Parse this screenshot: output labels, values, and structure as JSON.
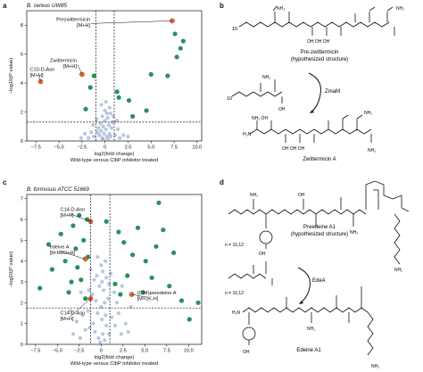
{
  "panel_letters": {
    "a": "a",
    "b": "b",
    "c": "c",
    "d": "d"
  },
  "plot_titles": {
    "a": "B. cereus UW85",
    "c": "B. formosus ATCC 51669"
  },
  "colors": {
    "background_point": "#7e97c8",
    "significant_point": "#1c8a55",
    "highlight_point": "#e0622a",
    "threshold_line": "#111111"
  },
  "chart_data": [
    {
      "type": "scatter",
      "panel": "a",
      "title": "B. cereus UW85",
      "xlabel_line1": "log2(fold change)",
      "xlabel_line2": "Wild-type versus ClbP inhibitor treated",
      "ylabel": "−log10(P value)",
      "xlim": [
        -8.5,
        10.5
      ],
      "ylim": [
        0,
        9
      ],
      "xticks": [
        "−7.5",
        "−5.0",
        "−2.5",
        "0",
        "2.5",
        "5.0",
        "7.5",
        "10.0"
      ],
      "xtick_values": [
        -7.5,
        -5.0,
        -2.5,
        0,
        2.5,
        5.0,
        7.5,
        10.0
      ],
      "yticks": [
        "0",
        "2",
        "4",
        "6",
        "8"
      ],
      "ytick_values": [
        0,
        2,
        4,
        6,
        8
      ],
      "threshold_x": [
        -1,
        1
      ],
      "threshold_y": 1.3,
      "series": [
        {
          "kind": "background",
          "points": [
            [
              -0.3,
              0.2
            ],
            [
              0.2,
              0.3
            ],
            [
              0.5,
              0.5
            ],
            [
              -0.6,
              0.4
            ],
            [
              0.1,
              0.8
            ],
            [
              -0.2,
              1.0
            ],
            [
              0.4,
              1.1
            ],
            [
              -0.4,
              0.7
            ],
            [
              0.6,
              0.3
            ],
            [
              -0.8,
              0.6
            ],
            [
              0.0,
              1.4
            ],
            [
              0.3,
              1.6
            ],
            [
              -0.5,
              1.2
            ],
            [
              0.7,
              0.9
            ],
            [
              -0.1,
              0.5
            ],
            [
              0.8,
              1.3
            ],
            [
              -0.7,
              0.9
            ],
            [
              0.2,
              1.9
            ],
            [
              -0.3,
              1.7
            ],
            [
              1.1,
              0.4
            ],
            [
              -1.2,
              0.3
            ],
            [
              1.4,
              0.8
            ],
            [
              -1.5,
              0.6
            ],
            [
              0.0,
              2.1
            ],
            [
              -0.9,
              1.5
            ],
            [
              0.9,
              1.7
            ],
            [
              1.6,
              0.2
            ],
            [
              -1.8,
              0.2
            ],
            [
              0.5,
              2.3
            ],
            [
              -0.4,
              2.5
            ],
            [
              2.0,
              0.4
            ],
            [
              -2.2,
              0.5
            ],
            [
              0.1,
              2.7
            ],
            [
              1.3,
              1.4
            ],
            [
              -1.3,
              1.1
            ],
            [
              0.3,
              0.1
            ],
            [
              -0.2,
              0.1
            ],
            [
              2.5,
              0.3
            ],
            [
              -2.6,
              0.2
            ],
            [
              0.6,
              1.9
            ]
          ]
        },
        {
          "kind": "significant",
          "points": [
            [
              7.8,
              5.8
            ],
            [
              8.2,
              6.4
            ],
            [
              8.5,
              6.9
            ],
            [
              7.6,
              7.4
            ],
            [
              6.8,
              4.5
            ],
            [
              2.6,
              2.8
            ],
            [
              1.5,
              3.0
            ],
            [
              1.3,
              3.4
            ],
            [
              -1.6,
              3.7
            ],
            [
              -2.1,
              2.2
            ],
            [
              4.5,
              2.1
            ],
            [
              5.0,
              4.6
            ],
            [
              -1.2,
              4.5
            ],
            [
              3.0,
              1.7
            ]
          ]
        },
        {
          "kind": "highlight",
          "points": [
            [
              7.3,
              8.3
            ],
            [
              -2.5,
              4.6
            ],
            [
              -7.0,
              4.1
            ]
          ]
        }
      ],
      "annotations": [
        {
          "line1": "Prezwittermicin",
          "line2": "[M+H]"
        },
        {
          "line1": "Zwittermicin",
          "line2": "[M+H]"
        },
        {
          "line1": "C10-D-Asn",
          "line2": "[M+H]"
        }
      ]
    },
    {
      "type": "scatter",
      "panel": "c",
      "title": "B. formosus ATCC 51669",
      "xlabel_line1": "log2(fold change)",
      "xlabel_line2": "Wild-type versus ClbP inhibitor treated",
      "ylabel": "−log10(P value)",
      "xlim": [
        -8.5,
        11.5
      ],
      "ylim": [
        0,
        7.2
      ],
      "xticks": [
        "−7.5",
        "−5.0",
        "−2.5",
        "0",
        "2.5",
        "5.0",
        "7.5",
        "10.0"
      ],
      "xtick_values": [
        -7.5,
        -5.0,
        -2.5,
        0,
        2.5,
        5.0,
        7.5,
        10.0
      ],
      "yticks": [
        "0",
        "1",
        "2",
        "3",
        "4",
        "5",
        "6",
        "7"
      ],
      "ytick_values": [
        0,
        1,
        2,
        3,
        4,
        5,
        6,
        7
      ],
      "threshold_x": [
        -1.2,
        1.0
      ],
      "threshold_y": 1.75,
      "series": [
        {
          "kind": "background",
          "points": [
            [
              -0.3,
              0.3
            ],
            [
              0.2,
              0.5
            ],
            [
              0.6,
              0.9
            ],
            [
              -0.7,
              0.6
            ],
            [
              0.1,
              1.2
            ],
            [
              -0.4,
              1.5
            ],
            [
              0.5,
              1.4
            ],
            [
              -0.9,
              1.0
            ],
            [
              0.9,
              0.5
            ],
            [
              -1.3,
              0.8
            ],
            [
              0.0,
              1.8
            ],
            [
              0.4,
              2.0
            ],
            [
              -0.6,
              2.1
            ],
            [
              1.2,
              1.3
            ],
            [
              -1.5,
              1.6
            ],
            [
              0.8,
              2.2
            ],
            [
              -1.0,
              2.4
            ],
            [
              0.3,
              2.6
            ],
            [
              -0.2,
              2.8
            ],
            [
              1.6,
              0.9
            ],
            [
              -1.8,
              0.7
            ],
            [
              2.0,
              1.5
            ],
            [
              -2.1,
              1.4
            ],
            [
              0.1,
              3.0
            ],
            [
              -1.4,
              2.6
            ],
            [
              1.5,
              2.5
            ],
            [
              2.3,
              0.5
            ],
            [
              -2.4,
              0.3
            ],
            [
              0.6,
              3.2
            ],
            [
              -0.5,
              3.3
            ],
            [
              2.8,
              1.0
            ],
            [
              -2.8,
              1.1
            ],
            [
              0.2,
              3.5
            ],
            [
              1.8,
              2.0
            ],
            [
              -1.7,
              2.2
            ],
            [
              0.4,
              0.2
            ],
            [
              -0.1,
              0.1
            ],
            [
              3.1,
              0.6
            ],
            [
              -3.2,
              0.5
            ],
            [
              0.9,
              2.9
            ],
            [
              -0.8,
              3.1
            ],
            [
              1.1,
              3.4
            ],
            [
              -1.2,
              3.6
            ],
            [
              0.0,
              3.8
            ],
            [
              2.4,
              2.8
            ],
            [
              -2.3,
              2.5
            ],
            [
              3.4,
              1.8
            ],
            [
              -3.5,
              1.6
            ],
            [
              0.5,
              4.0
            ],
            [
              -0.4,
              4.2
            ]
          ]
        },
        {
          "kind": "significant",
          "points": [
            [
              -7.0,
              2.7
            ],
            [
              -6.0,
              4.8
            ],
            [
              -5.6,
              3.6
            ],
            [
              -4.6,
              5.3
            ],
            [
              -4.1,
              4.0
            ],
            [
              -3.7,
              2.5
            ],
            [
              -3.2,
              5.7
            ],
            [
              -2.9,
              4.6
            ],
            [
              -2.5,
              6.2
            ],
            [
              -2.3,
              3.1
            ],
            [
              -2.0,
              5.0
            ],
            [
              -1.8,
              2.2
            ],
            [
              -1.6,
              6.0
            ],
            [
              -1.5,
              4.2
            ],
            [
              -2.7,
              3.7
            ],
            [
              -3.4,
              3.0
            ],
            [
              2.0,
              5.4
            ],
            [
              2.6,
              4.9
            ],
            [
              3.0,
              3.3
            ],
            [
              3.6,
              4.3
            ],
            [
              4.2,
              5.6
            ],
            [
              5.1,
              4.0
            ],
            [
              5.8,
              3.2
            ],
            [
              6.3,
              4.7
            ],
            [
              7.1,
              5.5
            ],
            [
              7.8,
              2.8
            ],
            [
              8.3,
              4.4
            ],
            [
              9.2,
              2.1
            ],
            [
              10.1,
              1.2
            ],
            [
              11.1,
              2.0
            ],
            [
              4.8,
              2.5
            ],
            [
              1.6,
              2.9
            ],
            [
              2.2,
              2.4
            ],
            [
              0.6,
              5.9
            ],
            [
              6.6,
              6.8
            ]
          ]
        },
        {
          "kind": "highlight",
          "points": [
            [
              -1.2,
              5.9
            ],
            [
              -1.8,
              4.1
            ],
            [
              -1.2,
              2.2
            ],
            [
              3.5,
              2.4
            ]
          ]
        }
      ],
      "annotations": [
        {
          "line1": "C14-D-Asn",
          "line2": "[M+H]"
        },
        {
          "line1": "edeine A",
          "line2": "[M-H2O+H]"
        },
        {
          "line1": "C14-D-Asn",
          "line2": "[M+H]"
        },
        {
          "line1": "(C14)preedeine A",
          "line2": "[M+2K-H]"
        }
      ]
    }
  ],
  "schemes": {
    "b": {
      "top_caption_line1": "Pre-zwittermicin",
      "top_caption_line2": "(hypothesized structure)",
      "enzyme": "ZmaM",
      "bottom_caption": "Zwittermicin A",
      "subscript": "10"
    },
    "d": {
      "top_caption_line1": "Preedeine A1",
      "top_caption_line2": "(hypothesized structure)",
      "enzyme": "EdeA",
      "bottom_caption": "Edeine A1",
      "n_label_top": "n = 10,12",
      "n_label_bottom": "n = 10,12"
    }
  }
}
